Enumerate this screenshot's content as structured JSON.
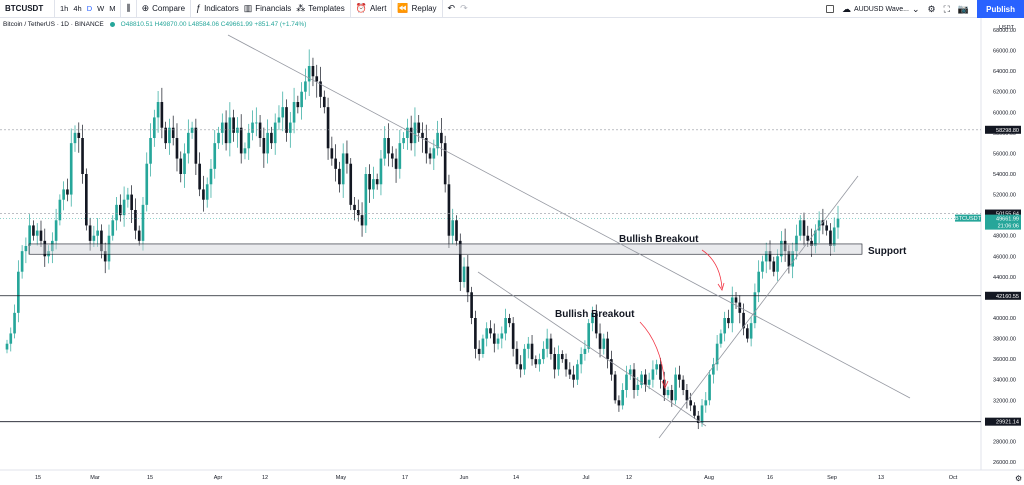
{
  "toolbar": {
    "symbol": "BTCUSDT",
    "intervals": [
      "1h",
      "4h",
      "D",
      "W",
      "M"
    ],
    "active_interval": "D",
    "compare_label": "Compare",
    "indicators_label": "Indicators",
    "financials_label": "Financials",
    "templates_label": "Templates",
    "alert_label": "Alert",
    "replay_label": "Replay",
    "layout_name": "AUDUSD Wave...",
    "publish_label": "Publish"
  },
  "legend": {
    "title": "Bitcoin / TetherUS · 1D · BINANCE",
    "ohlc": "O48810.51 H49870.00 L48584.06 C49661.99 +851.47 (+1.74%)"
  },
  "colors": {
    "up": "#26a69a",
    "down": "#131722",
    "accent": "#2962ff",
    "last_price": "#26a69a"
  },
  "chart_data": {
    "type": "candlestick",
    "symbol": "BTCUSDT",
    "currency": "USDT",
    "ylim": [
      26000,
      68000
    ],
    "y_ticks": [
      26000,
      28000,
      30000,
      32000,
      34000,
      36000,
      38000,
      40000,
      42000,
      44000,
      46000,
      48000,
      50000,
      52000,
      54000,
      56000,
      58000,
      60000,
      62000,
      64000,
      66000,
      68000
    ],
    "x_ticks": [
      "15",
      "Mar",
      "15",
      "Apr",
      "12",
      "May",
      "17",
      "Jun",
      "14",
      "Jul",
      "12",
      "Aug",
      "16",
      "Sep",
      "13",
      "Oct"
    ],
    "series": [
      {
        "name": "BTCUSDT",
        "close": [
          37500,
          38500,
          40500,
          44500,
          46500,
          47000,
          49000,
          48000,
          48500,
          47500,
          46000,
          46500,
          47500,
          49500,
          51500,
          52500,
          52000,
          57000,
          58000,
          57500,
          54000,
          49000,
          47500,
          48000,
          48500,
          46500,
          45500,
          48000,
          49500,
          51000,
          50000,
          51500,
          52000,
          50500,
          48500,
          47500,
          51000,
          55000,
          57500,
          59500,
          61000,
          58500,
          57000,
          58500,
          57500,
          55500,
          54000,
          56000,
          58000,
          58500,
          55000,
          52500,
          51500,
          53000,
          54500,
          57000,
          58000,
          59000,
          57000,
          59500,
          58000,
          58500,
          56000,
          56500,
          58000,
          59000,
          59000,
          57500,
          56000,
          58000,
          57000,
          59000,
          59500,
          60500,
          58000,
          59000,
          61000,
          60500,
          62000,
          63000,
          64500,
          63500,
          63000,
          61500,
          60500,
          56500,
          55500,
          54500,
          53000,
          56000,
          55000,
          51000,
          50500,
          50000,
          49000,
          54000,
          52500,
          53500,
          53000,
          55500,
          57500,
          56000,
          55500,
          54500,
          57000,
          57500,
          58500,
          57000,
          59000,
          58000,
          57500,
          56000,
          55500,
          56500,
          58000,
          57000,
          53000,
          48000,
          49500,
          47500,
          43500,
          45000,
          42500,
          40000,
          37000,
          36500,
          38000,
          39000,
          38500,
          37500,
          38000,
          38500,
          40000,
          39500,
          37000,
          35500,
          35000,
          37000,
          37500,
          36000,
          35500,
          36000,
          37000,
          38000,
          36500,
          35000,
          36500,
          36000,
          35000,
          34500,
          34000,
          35500,
          36500,
          37000,
          39500,
          40500,
          38500,
          37000,
          38000,
          36000,
          34500,
          32000,
          31500,
          33000,
          34500,
          35000,
          33000,
          33500,
          34500,
          33500,
          34000,
          35000,
          35500,
          34000,
          32500,
          33000,
          32000,
          34500,
          34000,
          33000,
          32000,
          31500,
          30500,
          29800,
          31500,
          32000,
          34500,
          35500,
          37500,
          38500,
          40000,
          39500,
          42000,
          41500,
          40500,
          39000,
          38000,
          39500,
          42500,
          44500,
          45500,
          46500,
          45500,
          44500,
          46000,
          47500,
          46500,
          45000,
          46500,
          48000,
          49500,
          48000,
          47500,
          47000,
          48500,
          49500,
          49000,
          48500,
          47000,
          48800,
          49662
        ]
      }
    ],
    "levels": [
      {
        "label": "58298.80",
        "value": 58298.8,
        "style": "dashed"
      },
      {
        "label": "50155.64",
        "value": 50155.64,
        "style": "dashed"
      },
      {
        "label": "42160.55",
        "value": 42160.55,
        "style": "solid"
      },
      {
        "label": "29921.14",
        "value": 29921.14,
        "style": "solid"
      }
    ],
    "last_price": {
      "symbol": "BTCUSDT",
      "price": "49661.99",
      "countdown": "21:06:06"
    },
    "support_zone": {
      "label": "Support",
      "from": 46200,
      "to": 47200
    },
    "annotations": [
      "Bullish Breakout",
      "Bullish Breakout"
    ]
  }
}
